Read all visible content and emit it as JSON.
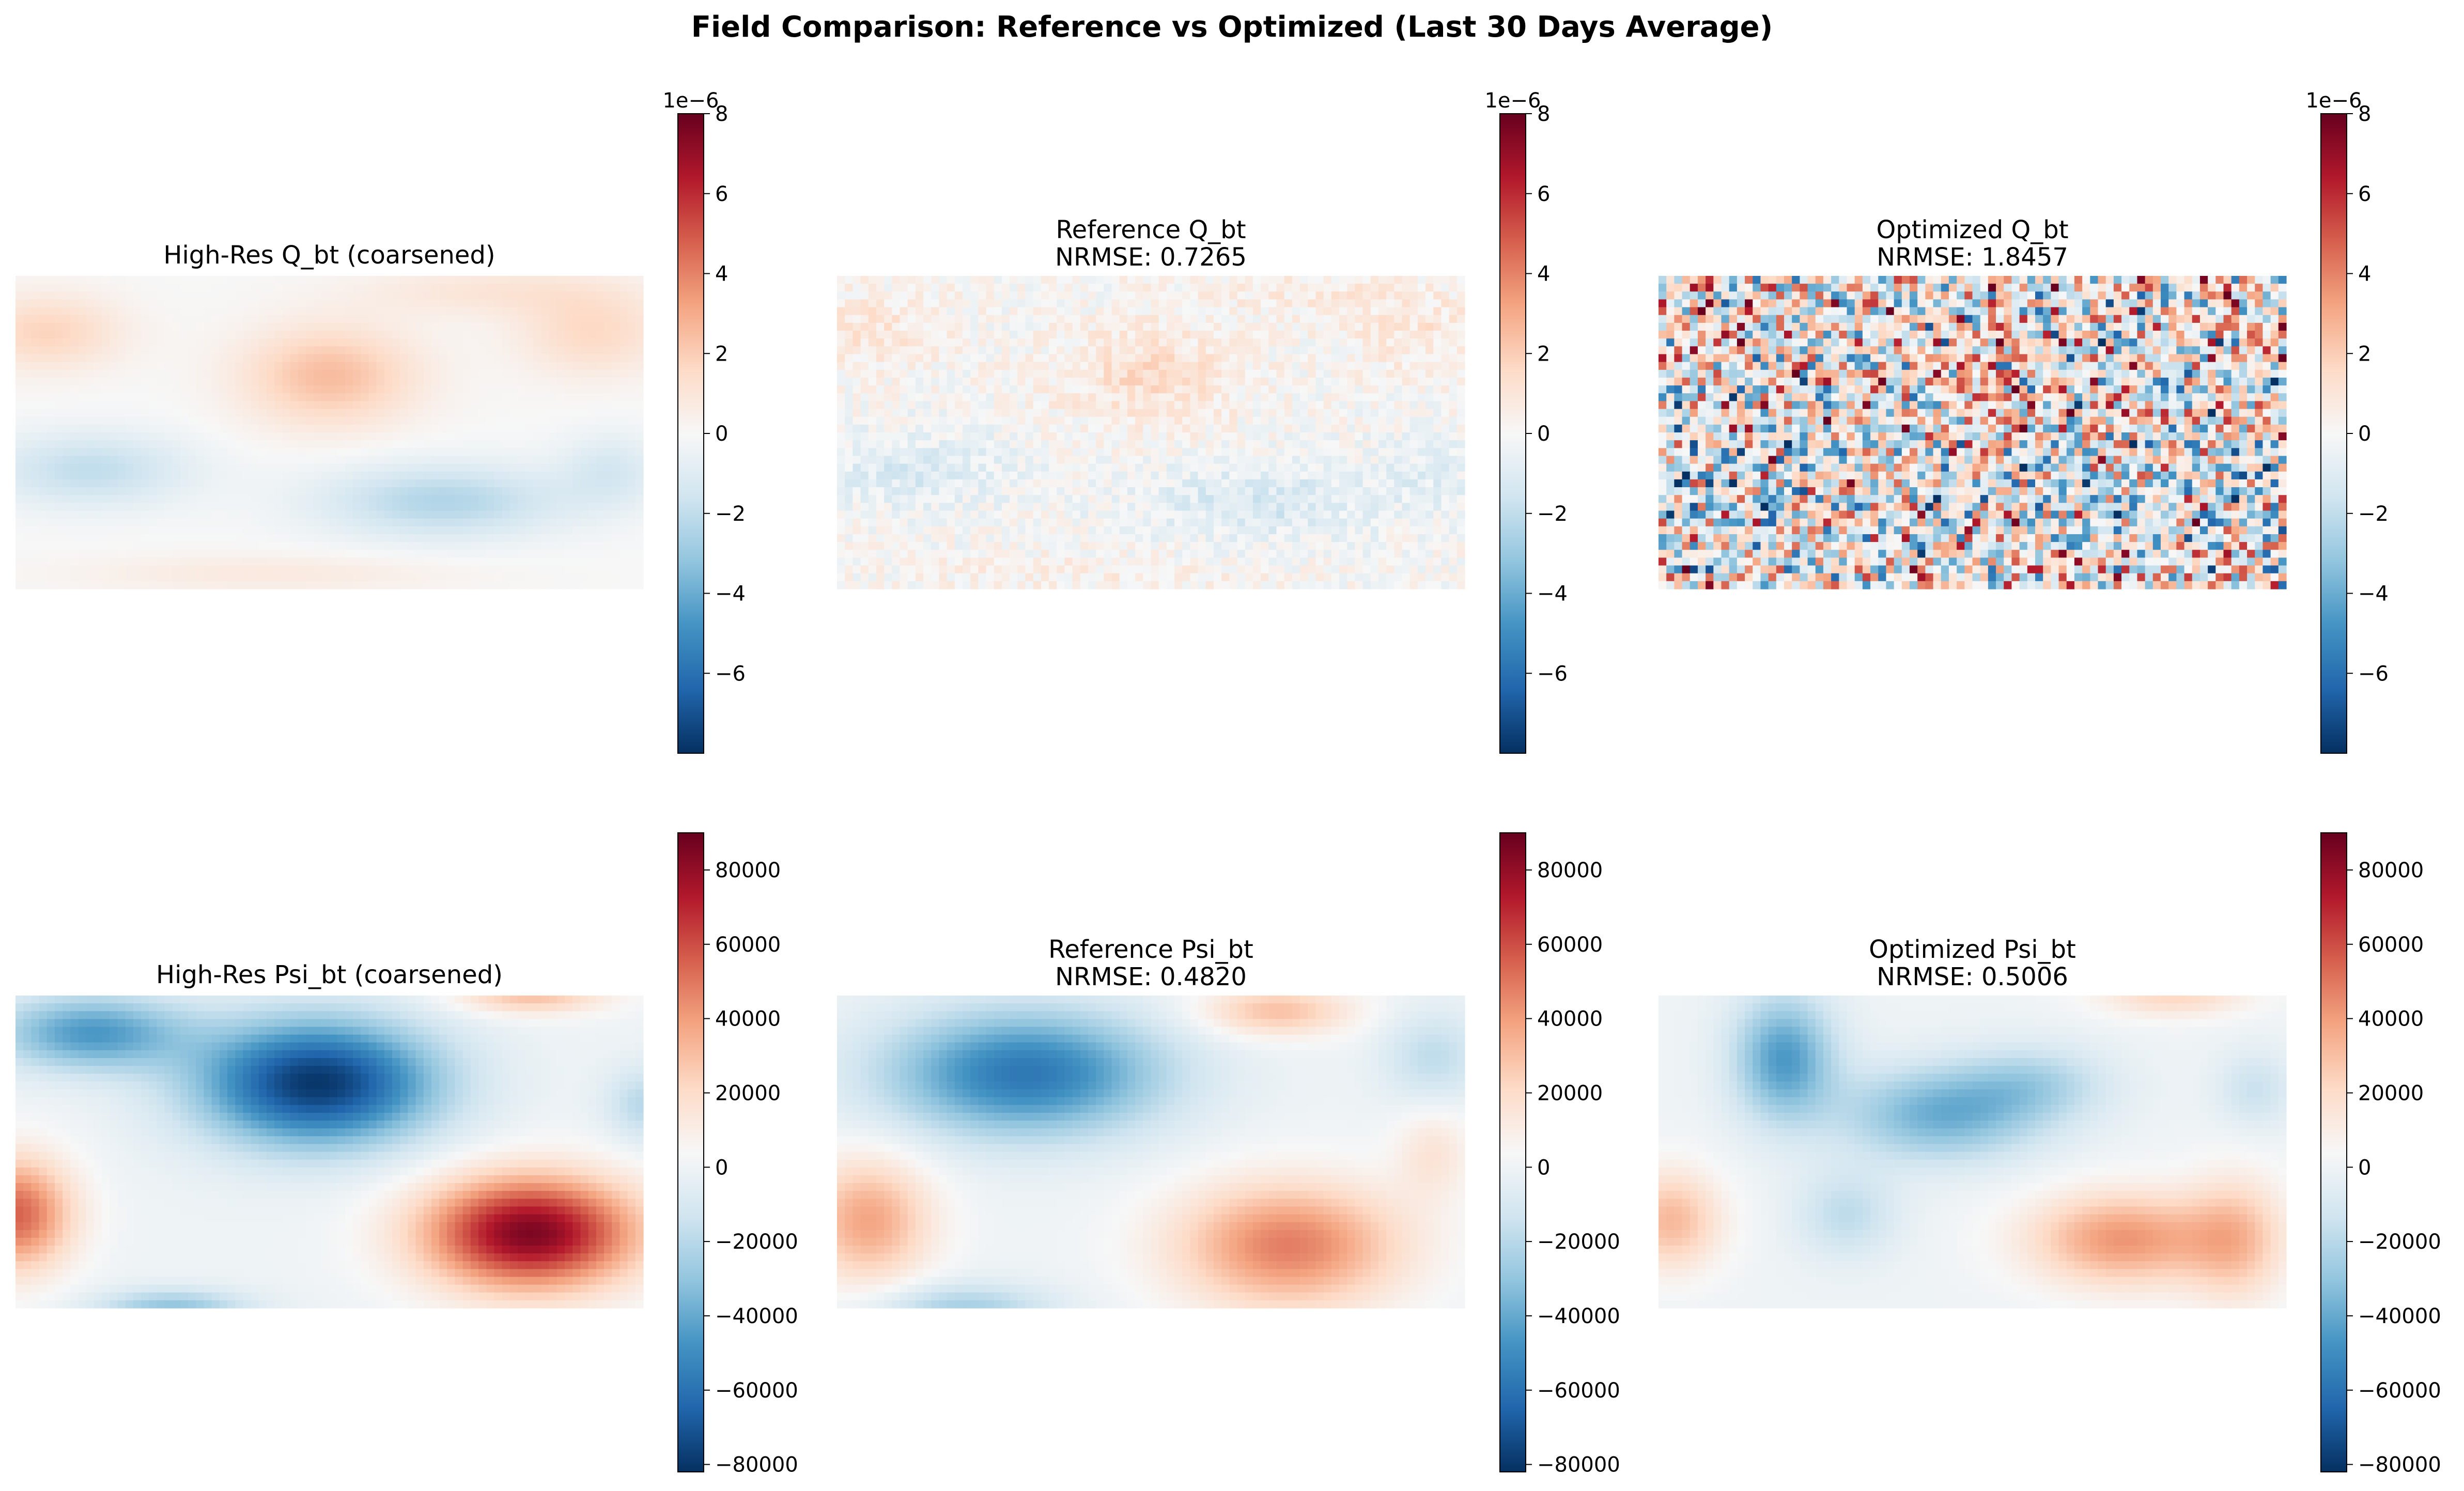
{
  "figure": {
    "title": "Field Comparison: Reference vs Optimized (Last 30 Days Average)"
  },
  "chart_data": [
    {
      "type": "heatmap",
      "title": "High-Res Q_bt (coarsened)",
      "field": "Q_bt",
      "grid": [
        40,
        80
      ],
      "colormap": "RdBu_r",
      "vmin": -8e-06,
      "vmax": 8e-06,
      "colorbar": {
        "offset_text": "1e−6",
        "ticks": [
          8,
          6,
          4,
          2,
          0,
          -2,
          -4,
          -6
        ],
        "tick_labels": [
          "8",
          "6",
          "4",
          "2",
          "0",
          "−2",
          "−4",
          "−6"
        ]
      },
      "approx_range": [
        -3e-06,
        3e-06
      ]
    },
    {
      "type": "heatmap",
      "title": "Reference Q_bt",
      "subtitle": "NRMSE: 0.7265",
      "field": "Q_bt",
      "grid": [
        40,
        80
      ],
      "colormap": "RdBu_r",
      "vmin": -8e-06,
      "vmax": 8e-06,
      "colorbar": {
        "offset_text": "1e−6",
        "ticks": [
          8,
          6,
          4,
          2,
          0,
          -2,
          -4,
          -6
        ],
        "tick_labels": [
          "8",
          "6",
          "4",
          "2",
          "0",
          "−2",
          "−4",
          "−6"
        ]
      },
      "approx_range": [
        -2.5e-06,
        2.5e-06
      ]
    },
    {
      "type": "heatmap",
      "title": "Optimized Q_bt",
      "subtitle": "NRMSE: 1.8457",
      "field": "Q_bt",
      "grid": [
        40,
        80
      ],
      "colormap": "RdBu_r",
      "vmin": -8e-06,
      "vmax": 8e-06,
      "colorbar": {
        "offset_text": "1e−6",
        "ticks": [
          8,
          6,
          4,
          2,
          0,
          -2,
          -4,
          -6
        ],
        "tick_labels": [
          "8",
          "6",
          "4",
          "2",
          "0",
          "−2",
          "−4",
          "−6"
        ]
      },
      "approx_range": [
        -8e-06,
        8e-06
      ]
    },
    {
      "type": "heatmap",
      "title": "High-Res Psi_bt (coarsened)",
      "field": "Psi_bt",
      "grid": [
        40,
        80
      ],
      "colormap": "RdBu_r",
      "vmin": -82000,
      "vmax": 90000,
      "colorbar": {
        "ticks": [
          80000,
          60000,
          40000,
          20000,
          0,
          -20000,
          -40000,
          -60000,
          -80000
        ],
        "tick_labels": [
          "80000",
          "60000",
          "40000",
          "20000",
          "0",
          "−20000",
          "−40000",
          "−60000",
          "−80000"
        ]
      },
      "approx_range": [
        -82000,
        88000
      ]
    },
    {
      "type": "heatmap",
      "title": "Reference Psi_bt",
      "subtitle": "NRMSE: 0.4820",
      "field": "Psi_bt",
      "grid": [
        40,
        80
      ],
      "colormap": "RdBu_r",
      "vmin": -82000,
      "vmax": 90000,
      "colorbar": {
        "ticks": [
          80000,
          60000,
          40000,
          20000,
          0,
          -20000,
          -40000,
          -60000,
          -80000
        ],
        "tick_labels": [
          "80000",
          "60000",
          "40000",
          "20000",
          "0",
          "−20000",
          "−40000",
          "−60000",
          "−80000"
        ]
      },
      "approx_range": [
        -60000,
        50000
      ]
    },
    {
      "type": "heatmap",
      "title": "Optimized Psi_bt",
      "subtitle": "NRMSE: 0.5006",
      "field": "Psi_bt",
      "grid": [
        40,
        80
      ],
      "colormap": "RdBu_r",
      "vmin": -82000,
      "vmax": 90000,
      "colorbar": {
        "ticks": [
          80000,
          60000,
          40000,
          20000,
          0,
          -20000,
          -40000,
          -60000,
          -80000
        ],
        "tick_labels": [
          "80000",
          "60000",
          "40000",
          "20000",
          "0",
          "−20000",
          "−40000",
          "−60000",
          "−80000"
        ]
      },
      "approx_range": [
        -50000,
        45000
      ]
    }
  ]
}
